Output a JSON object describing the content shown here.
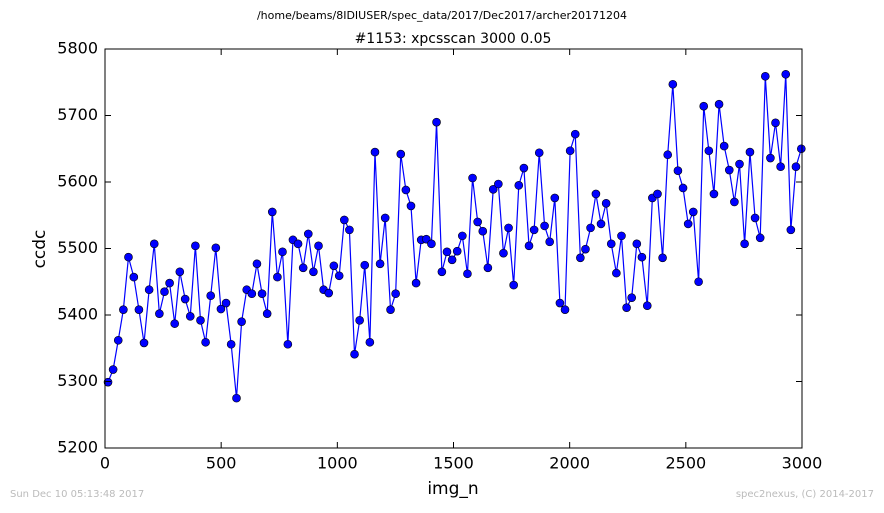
{
  "chart_data": {
    "type": "line",
    "suptitle": "/home/beams/8IDIUSER/spec_data/2017/Dec2017/archer20171204",
    "title": "#1153: xpcsscan 3000 0.05",
    "x_label": "img_n",
    "y_label": "ccdc",
    "footer_left": "Sun Dec 10 05:13:48 2017",
    "footer_right": "spec2nexus, (C) 2014-2017",
    "xlim": [
      0,
      3000
    ],
    "xticks": [
      0,
      500,
      1000,
      1500,
      2000,
      2500,
      3000
    ],
    "ylim": [
      5200,
      5800
    ],
    "yticks": [
      5200,
      5300,
      5400,
      5500,
      5600,
      5700,
      5800
    ],
    "x": [
      13,
      35,
      57,
      79,
      101,
      124,
      146,
      168,
      190,
      212,
      234,
      256,
      278,
      300,
      322,
      345,
      367,
      389,
      411,
      433,
      455,
      477,
      499,
      521,
      543,
      566,
      588,
      610,
      632,
      654,
      676,
      698,
      720,
      742,
      764,
      787,
      809,
      831,
      853,
      875,
      897,
      919,
      941,
      963,
      985,
      1008,
      1030,
      1052,
      1074,
      1096,
      1118,
      1140,
      1162,
      1184,
      1206,
      1229,
      1251,
      1273,
      1295,
      1317,
      1339,
      1361,
      1383,
      1405,
      1427,
      1450,
      1472,
      1494,
      1516,
      1538,
      1560,
      1582,
      1604,
      1626,
      1648,
      1671,
      1693,
      1715,
      1737,
      1759,
      1781,
      1803,
      1825,
      1847,
      1869,
      1892,
      1914,
      1936,
      1958,
      1980,
      2002,
      2024,
      2046,
      2068,
      2090,
      2113,
      2135,
      2157,
      2179,
      2201,
      2223,
      2245,
      2267,
      2289,
      2311,
      2334,
      2356,
      2378,
      2400,
      2422,
      2444,
      2466,
      2488,
      2510,
      2532,
      2555,
      2577,
      2599,
      2621,
      2643,
      2665,
      2687,
      2709,
      2731,
      2753,
      2776,
      2798,
      2820,
      2842,
      2864,
      2886,
      2908,
      2930,
      2952,
      2974,
      2997
    ],
    "series": [
      {
        "color": "#0000ff",
        "values": [
          5299,
          5318,
          5362,
          5408,
          5487,
          5457,
          5408,
          5358,
          5438,
          5507,
          5402,
          5435,
          5448,
          5387,
          5465,
          5424,
          5398,
          5504,
          5392,
          5359,
          5429,
          5501,
          5409,
          5418,
          5356,
          5275,
          5390,
          5438,
          5432,
          5477,
          5432,
          5402,
          5555,
          5457,
          5495,
          5356,
          5513,
          5507,
          5471,
          5522,
          5465,
          5504,
          5438,
          5433,
          5474,
          5459,
          5543,
          5528,
          5341,
          5392,
          5475,
          5359,
          5645,
          5477,
          5546,
          5408,
          5432,
          5642,
          5588,
          5564,
          5448,
          5513,
          5514,
          5507,
          5690,
          5465,
          5495,
          5483,
          5496,
          5519,
          5462,
          5606,
          5540,
          5526,
          5471,
          5589,
          5597,
          5493,
          5531,
          5445,
          5595,
          5621,
          5504,
          5528,
          5644,
          5534,
          5510,
          5576,
          5418,
          5408,
          5647,
          5672,
          5486,
          5499,
          5531,
          5582,
          5537,
          5568,
          5507,
          5463,
          5519,
          5411,
          5426,
          5507,
          5487,
          5414,
          5576,
          5582,
          5486,
          5641,
          5747,
          5617,
          5591,
          5537,
          5555,
          5450,
          5714,
          5647,
          5582,
          5717,
          5654,
          5618,
          5570,
          5627,
          5507,
          5645,
          5546,
          5516,
          5759,
          5636,
          5689,
          5623,
          5762,
          5528,
          5623,
          5650
        ]
      }
    ]
  }
}
